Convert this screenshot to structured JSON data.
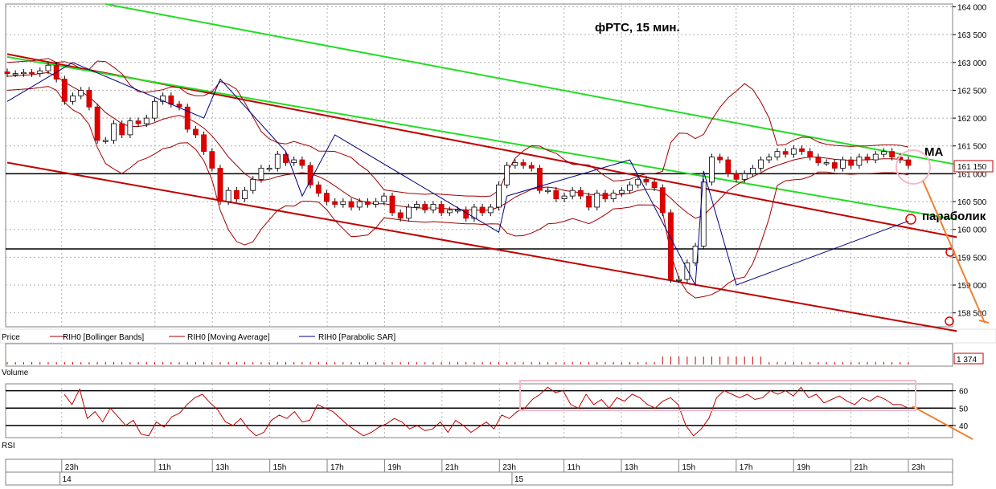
{
  "chart_data": {
    "type": "candlestick",
    "title": "фРТС,  15 мин.",
    "price_panel": {
      "label": "Price",
      "ylim": [
        158250,
        164050
      ],
      "y_ticks": [
        158500,
        159000,
        159500,
        160000,
        160500,
        161000,
        161500,
        162000,
        162500,
        163000,
        163500,
        164000
      ],
      "y_tick_labels": [
        "158 500",
        "159 000",
        "159 500",
        "160 000",
        "160 500",
        "161 000",
        "161 500",
        "162 000",
        "162 500",
        "163 000",
        "163 500",
        "164 000"
      ],
      "last_price": 161150,
      "last_price_label": "161 150",
      "horizontal_levels": [
        161000,
        159650
      ],
      "legend": [
        {
          "name": "RIH0 [Bollinger Bands]",
          "color": "#a00000"
        },
        {
          "name": "RIH0 [Moving Average]",
          "color": "#a00000"
        },
        {
          "name": "RIH0 [Parabolic SAR]",
          "color": "#000080"
        }
      ],
      "closes": [
        162800,
        162800,
        162820,
        162800,
        162850,
        162950,
        162700,
        162300,
        162400,
        162500,
        162200,
        161600,
        161600,
        161900,
        161700,
        161950,
        161900,
        162000,
        162300,
        162400,
        162250,
        162200,
        161800,
        161700,
        161400,
        161100,
        160500,
        160700,
        160550,
        160700,
        160900,
        161100,
        161100,
        161350,
        161200,
        161250,
        161150,
        160800,
        160650,
        160500,
        160450,
        160500,
        160400,
        160500,
        160450,
        160500,
        160600,
        160300,
        160200,
        160400,
        160450,
        160350,
        160450,
        160300,
        160350,
        160350,
        160200,
        160400,
        160300,
        160400,
        160800,
        161150,
        161200,
        161150,
        161100,
        160700,
        160700,
        160550,
        160600,
        160700,
        160600,
        160400,
        160650,
        160550,
        160650,
        160700,
        160800,
        160900,
        160850,
        160750,
        160300,
        159100,
        159100,
        159400,
        159700,
        160850,
        161300,
        161250,
        161000,
        160900,
        161000,
        161100,
        161250,
        161300,
        161400,
        161350,
        161450,
        161400,
        161300,
        161200,
        161200,
        161100,
        161250,
        161150,
        161300,
        161250,
        161350,
        161400,
        161300,
        161250,
        161150
      ],
      "moving_average": [
        162750,
        162760,
        162770,
        162780,
        162800,
        162820,
        162750,
        162650,
        162560,
        162480,
        162380,
        162250,
        162100,
        162000,
        161900,
        161850,
        161850,
        161870,
        161920,
        161980,
        162020,
        162050,
        162000,
        161920,
        161820,
        161680,
        161500,
        161300,
        161150,
        161000,
        160900,
        160880,
        160900,
        160950,
        160980,
        161000,
        161020,
        161000,
        160950,
        160880,
        160780,
        160680,
        160580,
        160520,
        160480,
        160460,
        160460,
        160440,
        160420,
        160400,
        160390,
        160380,
        160390,
        160380,
        160370,
        160360,
        160350,
        160350,
        160340,
        160350,
        160400,
        160480,
        160580,
        160650,
        160720,
        160750,
        160760,
        160740,
        160700,
        160680,
        160660,
        160630,
        160620,
        160610,
        160620,
        160630,
        160650,
        160700,
        160720,
        160720,
        160680,
        160560,
        160420,
        160300,
        160200,
        160250,
        160400,
        160550,
        160700,
        160800,
        160880,
        160950,
        161020,
        161100,
        161150,
        161200,
        161250,
        161280,
        161300,
        161300,
        161280,
        161260,
        161250,
        161240,
        161250,
        161250,
        161260,
        161270,
        161270,
        161260,
        161230
      ],
      "sar_points": [
        [
          0,
          162300
        ],
        [
          8,
          163000
        ],
        [
          24,
          162000
        ],
        [
          26,
          162700
        ],
        [
          34,
          161400
        ],
        [
          36,
          160600
        ],
        [
          40,
          161700
        ],
        [
          60,
          159950
        ],
        [
          61,
          160600
        ],
        [
          76,
          161250
        ],
        [
          84,
          159000
        ],
        [
          85,
          161050
        ],
        [
          89,
          159000
        ],
        [
          110,
          160150
        ]
      ],
      "red_channel_upper": [
        [
          0,
          163150
        ],
        [
          111,
          160000
        ]
      ],
      "red_channel_lower": [
        [
          0,
          161200
        ],
        [
          111,
          158300
        ]
      ],
      "green_channel_upper": [
        [
          12,
          164050
        ],
        [
          111,
          161300
        ]
      ],
      "green_channel_lower": [
        [
          0,
          163100
        ],
        [
          111,
          160300
        ]
      ]
    },
    "volume_panel": {
      "label": "Volume",
      "last_value_label": "1 374"
    },
    "rsi_panel": {
      "label": "RSI",
      "ylim": [
        33,
        64
      ],
      "y_ticks": [
        40,
        50,
        60
      ],
      "y_tick_labels": [
        "40",
        "50",
        "60"
      ],
      "levels": [
        60,
        50,
        40
      ],
      "values": [
        58,
        52,
        61,
        44,
        48,
        42,
        50,
        45,
        40,
        43,
        35,
        34,
        42,
        39,
        45,
        47,
        52,
        56,
        58,
        53,
        49,
        42,
        40,
        44,
        38,
        34,
        36,
        43,
        46,
        44,
        48,
        42,
        43,
        52,
        50,
        48,
        44,
        40,
        37,
        34,
        36,
        39,
        41,
        44,
        42,
        38,
        40,
        37,
        38,
        42,
        36,
        43,
        40,
        36,
        39,
        42,
        38,
        46,
        44,
        48,
        50,
        55,
        58,
        62,
        59,
        60,
        52,
        50,
        58,
        52,
        55,
        50,
        56,
        54,
        58,
        56,
        52,
        50,
        54,
        56,
        52,
        40,
        34,
        38,
        44,
        56,
        60,
        58,
        56,
        58,
        55,
        56,
        60,
        58,
        60,
        57,
        62,
        56,
        58,
        53,
        55,
        57,
        54,
        52,
        56,
        54,
        57,
        55,
        52,
        52,
        50
      ]
    },
    "x_axis": {
      "tick_labels": [
        "23h",
        "11h",
        "13h",
        "15h",
        "17h",
        "19h",
        "21h",
        "23h",
        "11h",
        "13h",
        "15h",
        "17h",
        "19h",
        "21h",
        "23h"
      ],
      "tick_indices": [
        3,
        16,
        24,
        32,
        40,
        48,
        56,
        64,
        73,
        81,
        89,
        97,
        105,
        113,
        121
      ],
      "date_labels": [
        "14",
        "15"
      ],
      "date_indices": [
        5,
        68
      ]
    },
    "annotations": [
      "MA",
      "параболик"
    ]
  }
}
